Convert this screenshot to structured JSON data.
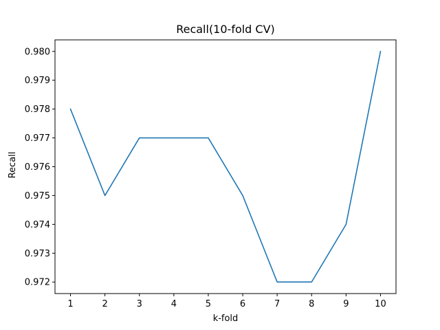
{
  "chart_data": {
    "type": "line",
    "title": "Recall(10-fold CV)",
    "xlabel": "k-fold",
    "ylabel": "Recall",
    "x": [
      1,
      2,
      3,
      4,
      5,
      6,
      7,
      8,
      9,
      10
    ],
    "series": [
      {
        "values": [
          0.978,
          0.975,
          0.977,
          0.977,
          0.977,
          0.975,
          0.972,
          0.972,
          0.974,
          0.98
        ],
        "color": "#1f77b4"
      }
    ],
    "xticks": [
      "1",
      "2",
      "3",
      "4",
      "5",
      "6",
      "7",
      "8",
      "9",
      "10"
    ],
    "yticks": [
      "0.972",
      "0.973",
      "0.974",
      "0.975",
      "0.976",
      "0.977",
      "0.978",
      "0.979",
      "0.980"
    ],
    "xlim": [
      0.55,
      10.45
    ],
    "ylim": [
      0.9716,
      0.9804
    ],
    "grid": false,
    "legend": "none"
  }
}
